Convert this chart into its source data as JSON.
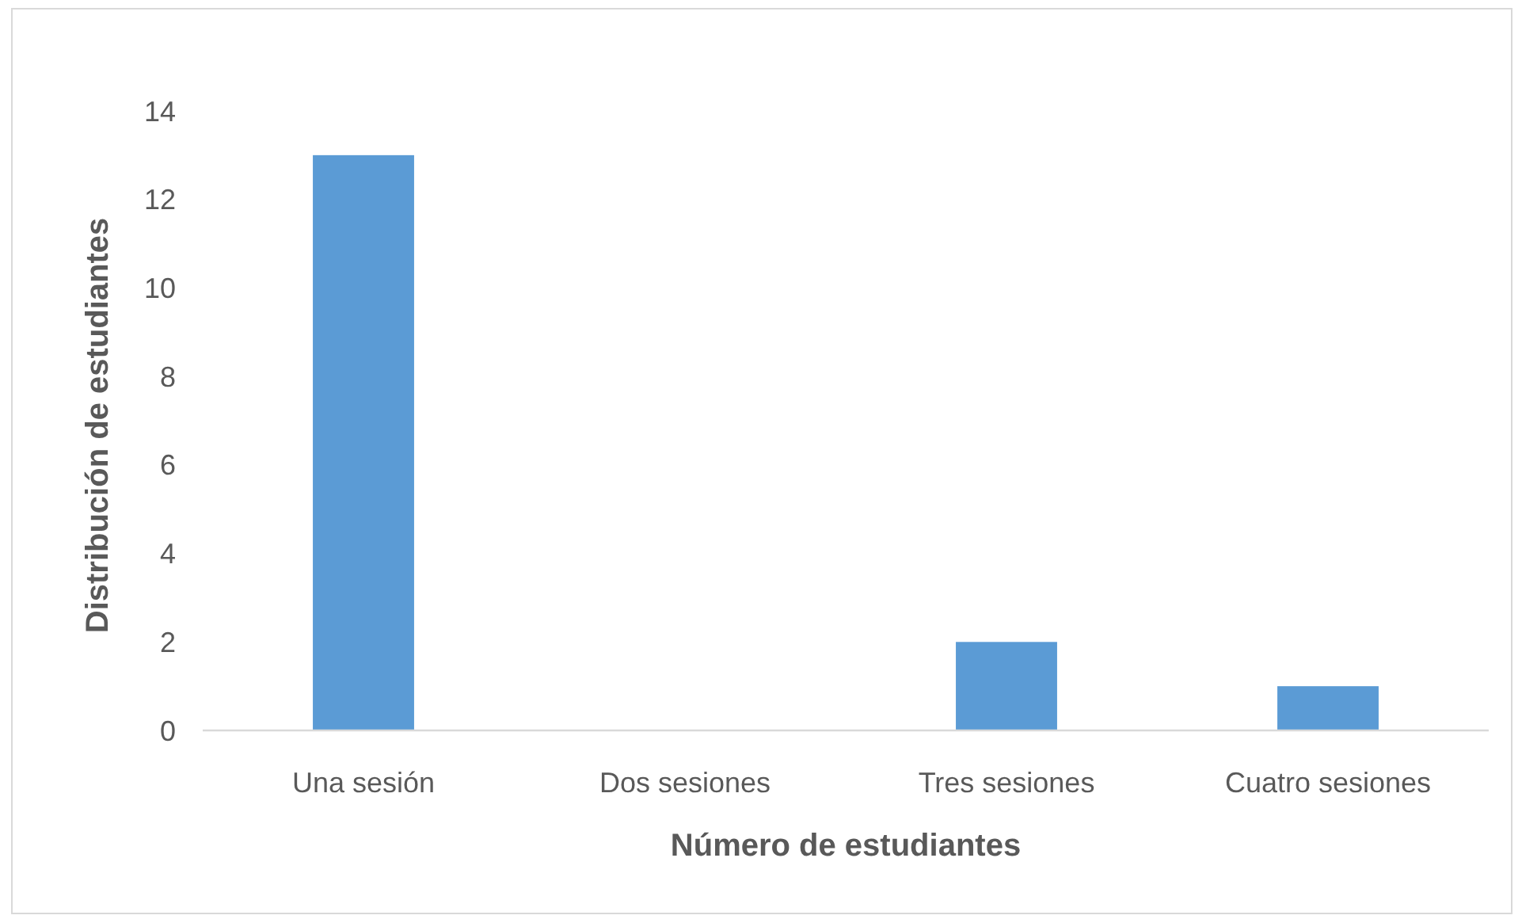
{
  "chart_data": {
    "type": "bar",
    "xlabel": "Número de estudiantes",
    "ylabel": "Distribución de estudiantes",
    "categories": [
      "Una sesión",
      "Dos sesiones",
      "Tres sesiones",
      "Cuatro sesiones"
    ],
    "values": [
      13,
      0,
      2,
      1
    ],
    "color": "#5b9bd5",
    "ylim": [
      0,
      14
    ],
    "yticks": [
      0,
      2,
      4,
      6,
      8,
      10,
      12,
      14
    ],
    "grid": false
  }
}
